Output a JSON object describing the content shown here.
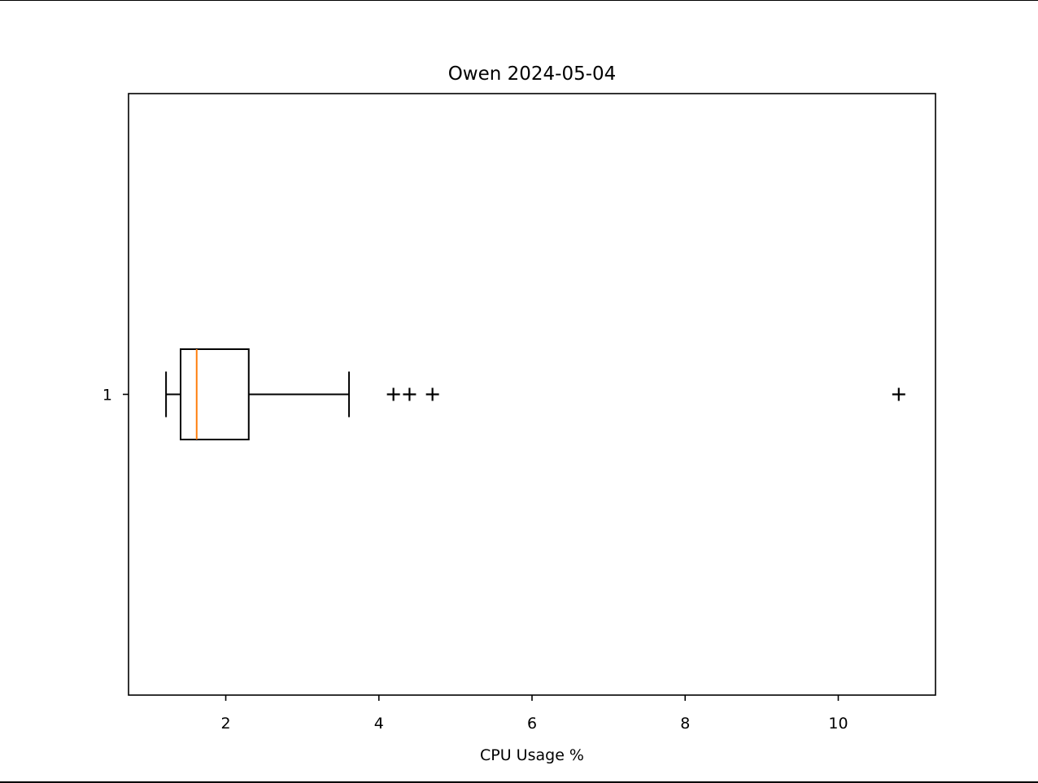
{
  "chart_data": {
    "type": "boxplot",
    "orientation": "horizontal",
    "title": "Owen 2024-05-04",
    "xlabel": "CPU Usage %",
    "ylabel": "",
    "xlim": [
      0.73,
      11.27
    ],
    "x_ticks": [
      2,
      4,
      6,
      8,
      10
    ],
    "x_tick_labels": [
      "2",
      "4",
      "6",
      "8",
      "10"
    ],
    "categories": [
      "1"
    ],
    "boxes": [
      {
        "position": 1,
        "label": "1",
        "whisker_low": 1.22,
        "q1": 1.41,
        "median": 1.62,
        "q3": 2.3,
        "whisker_high": 3.61,
        "outliers": [
          4.19,
          4.4,
          4.7,
          10.79
        ]
      }
    ],
    "grid": false,
    "legend": "none",
    "colors": {
      "box": "#000000",
      "median": "#ff7f0e",
      "outlier": "#000000"
    }
  }
}
